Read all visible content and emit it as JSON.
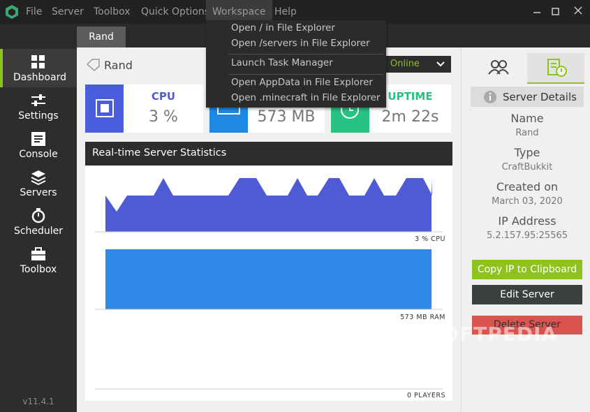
{
  "menu": [
    "File",
    "Server",
    "Toolbox",
    "Quick Options",
    "Workspace",
    "Help"
  ],
  "workspace_menu": [
    "Open / in File Explorer",
    "Open /servers in File Explorer",
    "Launch Task Manager",
    "Open AppData in File Explorer",
    "Open .minecraft in File Explorer"
  ],
  "tab": "Rand",
  "sidebar": [
    "Dashboard",
    "Settings",
    "Console",
    "Servers",
    "Scheduler",
    "Toolbox"
  ],
  "version": "v11.4.1",
  "server": {
    "name": "Rand",
    "status": "Online"
  },
  "stats": {
    "cpu": {
      "label": "CPU",
      "value": "3 %"
    },
    "ram": {
      "value": "573 MB"
    },
    "uptime": {
      "label": "UPTIME",
      "value": "2m 22s"
    }
  },
  "statistics": {
    "title": "Real-time Server Statistics",
    "graphs": [
      "3 % CPU",
      "573 MB RAM",
      "0 PLAYERS"
    ]
  },
  "details": {
    "title": "Server Details",
    "fields": [
      {
        "label": "Name",
        "value": "Rand"
      },
      {
        "label": "Type",
        "value": "CraftBukkit"
      },
      {
        "label": "Created on",
        "value": "March 03, 2020"
      },
      {
        "label": "IP Address",
        "value": "5.2.157.95:25565"
      }
    ]
  },
  "buttons": [
    "Copy IP to Clipboard",
    "Edit Server",
    "Delete Server"
  ],
  "watermark": "SOFTPEDIA"
}
